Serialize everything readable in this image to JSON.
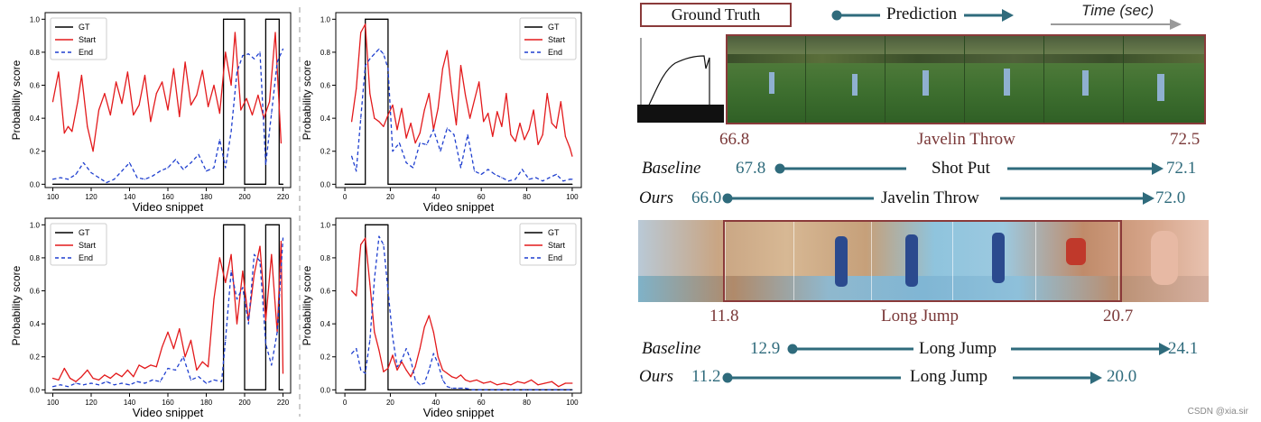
{
  "colors": {
    "gt": "#000000",
    "start": "#e31a1c",
    "end": "#1f3fcf",
    "teal": "#2f6b7c",
    "maroon": "#7a3838",
    "arrow_gray": "#9a9a9a"
  },
  "chart_data": [
    {
      "type": "line",
      "xlabel": "Video snippet",
      "ylabel": "Probability score",
      "xlim": [
        96,
        224
      ],
      "ylim": [
        -0.02,
        1.04
      ],
      "xticks": [
        100,
        120,
        140,
        160,
        180,
        200,
        220
      ],
      "yticks": [
        0.0,
        0.2,
        0.4,
        0.6,
        0.8,
        1.0
      ],
      "legend": "top-left",
      "series": [
        {
          "name": "GT",
          "style": "solid",
          "x": [
            100,
            189,
            189,
            191,
            191,
            200,
            200,
            211,
            211,
            218,
            218,
            220
          ],
          "y": [
            0,
            0,
            1,
            1,
            1,
            1,
            0,
            0,
            1,
            1,
            0,
            0
          ]
        },
        {
          "name": "Start",
          "style": "solid",
          "x": [
            100,
            103,
            106,
            108,
            110,
            113,
            115,
            118,
            121,
            124,
            127,
            130,
            133,
            136,
            139,
            142,
            145,
            148,
            151,
            154,
            157,
            160,
            163,
            166,
            169,
            172,
            175,
            178,
            181,
            184,
            187,
            190,
            193,
            195,
            198,
            201,
            204,
            207,
            210,
            213,
            216,
            219
          ],
          "y": [
            0.5,
            0.68,
            0.31,
            0.35,
            0.32,
            0.5,
            0.66,
            0.35,
            0.2,
            0.45,
            0.55,
            0.42,
            0.62,
            0.49,
            0.68,
            0.42,
            0.48,
            0.66,
            0.38,
            0.55,
            0.62,
            0.45,
            0.7,
            0.41,
            0.74,
            0.48,
            0.54,
            0.69,
            0.47,
            0.6,
            0.43,
            0.8,
            0.6,
            0.92,
            0.45,
            0.52,
            0.42,
            0.54,
            0.4,
            0.5,
            0.92,
            0.25
          ]
        },
        {
          "name": "End",
          "style": "dashed",
          "x": [
            100,
            104,
            108,
            112,
            116,
            120,
            124,
            128,
            132,
            136,
            140,
            144,
            148,
            152,
            156,
            160,
            164,
            168,
            172,
            176,
            180,
            184,
            187,
            190,
            193,
            196,
            199,
            202,
            205,
            208,
            211,
            214,
            217,
            220
          ],
          "y": [
            0.03,
            0.04,
            0.03,
            0.06,
            0.13,
            0.07,
            0.04,
            0.01,
            0.03,
            0.08,
            0.13,
            0.04,
            0.03,
            0.05,
            0.08,
            0.1,
            0.15,
            0.09,
            0.13,
            0.18,
            0.08,
            0.1,
            0.27,
            0.1,
            0.32,
            0.68,
            0.78,
            0.79,
            0.76,
            0.8,
            0.12,
            0.43,
            0.74,
            0.82
          ]
        }
      ]
    },
    {
      "type": "line",
      "xlabel": "Video snippet",
      "ylabel": "Probability score",
      "xlim": [
        -4,
        104
      ],
      "ylim": [
        -0.02,
        1.04
      ],
      "xticks": [
        0,
        20,
        40,
        60,
        80,
        100
      ],
      "yticks": [
        0.0,
        0.2,
        0.4,
        0.6,
        0.8,
        1.0
      ],
      "legend": "top-right",
      "series": [
        {
          "name": "GT",
          "style": "solid",
          "x": [
            0,
            9,
            9,
            19,
            19,
            100
          ],
          "y": [
            0,
            0,
            1,
            1,
            0,
            0
          ]
        },
        {
          "name": "Start",
          "style": "solid",
          "x": [
            3,
            5,
            7,
            9,
            11,
            13,
            15,
            17,
            19,
            21,
            23,
            25,
            27,
            29,
            31,
            33,
            35,
            37,
            39,
            41,
            43,
            45,
            47,
            49,
            51,
            53,
            55,
            57,
            59,
            61,
            63,
            65,
            67,
            69,
            71,
            73,
            75,
            77,
            79,
            81,
            83,
            85,
            87,
            89,
            91,
            93,
            95,
            97,
            99,
            100
          ],
          "y": [
            0.38,
            0.58,
            0.92,
            0.97,
            0.55,
            0.4,
            0.38,
            0.35,
            0.42,
            0.48,
            0.33,
            0.46,
            0.28,
            0.37,
            0.25,
            0.31,
            0.45,
            0.55,
            0.33,
            0.46,
            0.7,
            0.81,
            0.56,
            0.36,
            0.72,
            0.54,
            0.4,
            0.51,
            0.62,
            0.38,
            0.43,
            0.29,
            0.44,
            0.35,
            0.55,
            0.3,
            0.26,
            0.37,
            0.27,
            0.33,
            0.45,
            0.24,
            0.3,
            0.55,
            0.37,
            0.34,
            0.5,
            0.29,
            0.22,
            0.17
          ]
        },
        {
          "name": "End",
          "style": "dashed",
          "x": [
            3,
            5,
            7,
            9,
            11,
            13,
            15,
            17,
            19,
            21,
            24,
            27,
            30,
            33,
            36,
            39,
            42,
            45,
            48,
            51,
            54,
            57,
            60,
            63,
            66,
            69,
            72,
            75,
            78,
            81,
            84,
            87,
            90,
            93,
            96,
            99,
            100
          ],
          "y": [
            0.17,
            0.08,
            0.4,
            0.72,
            0.76,
            0.79,
            0.82,
            0.79,
            0.7,
            0.2,
            0.25,
            0.13,
            0.1,
            0.25,
            0.24,
            0.33,
            0.2,
            0.34,
            0.3,
            0.1,
            0.3,
            0.08,
            0.06,
            0.09,
            0.06,
            0.04,
            0.02,
            0.03,
            0.09,
            0.03,
            0.04,
            0.02,
            0.04,
            0.06,
            0.02,
            0.03,
            0.03
          ]
        }
      ]
    },
    {
      "type": "line",
      "xlabel": "Video snippet",
      "ylabel": "Probability score",
      "xlim": [
        96,
        224
      ],
      "ylim": [
        -0.02,
        1.04
      ],
      "xticks": [
        100,
        120,
        140,
        160,
        180,
        200,
        220
      ],
      "yticks": [
        0.0,
        0.2,
        0.4,
        0.6,
        0.8,
        1.0
      ],
      "legend": "top-left",
      "series": [
        {
          "name": "GT",
          "style": "solid",
          "x": [
            100,
            189,
            189,
            191,
            191,
            200,
            200,
            211,
            211,
            218,
            218,
            220
          ],
          "y": [
            0,
            0,
            1,
            1,
            1,
            1,
            0,
            0,
            1,
            1,
            0,
            0
          ]
        },
        {
          "name": "Start",
          "style": "solid",
          "x": [
            100,
            103,
            106,
            109,
            112,
            115,
            118,
            121,
            124,
            127,
            130,
            133,
            136,
            139,
            142,
            145,
            148,
            151,
            154,
            157,
            160,
            163,
            166,
            169,
            172,
            175,
            178,
            181,
            184,
            187,
            190,
            193,
            196,
            199,
            202,
            205,
            208,
            211,
            214,
            217,
            219,
            220
          ],
          "y": [
            0.07,
            0.06,
            0.13,
            0.07,
            0.05,
            0.08,
            0.12,
            0.07,
            0.06,
            0.09,
            0.07,
            0.1,
            0.08,
            0.12,
            0.08,
            0.15,
            0.13,
            0.15,
            0.14,
            0.26,
            0.35,
            0.25,
            0.37,
            0.2,
            0.3,
            0.12,
            0.17,
            0.14,
            0.55,
            0.8,
            0.65,
            0.82,
            0.4,
            0.72,
            0.42,
            0.7,
            0.87,
            0.42,
            0.82,
            0.35,
            0.9,
            0.1
          ]
        },
        {
          "name": "End",
          "style": "dashed",
          "x": [
            100,
            104,
            108,
            112,
            116,
            120,
            124,
            128,
            132,
            136,
            140,
            144,
            148,
            152,
            156,
            160,
            164,
            168,
            172,
            176,
            180,
            184,
            188,
            190,
            193,
            196,
            199,
            202,
            205,
            208,
            211,
            214,
            217,
            220
          ],
          "y": [
            0.02,
            0.03,
            0.02,
            0.04,
            0.03,
            0.04,
            0.03,
            0.05,
            0.03,
            0.04,
            0.03,
            0.05,
            0.04,
            0.06,
            0.05,
            0.13,
            0.12,
            0.2,
            0.06,
            0.08,
            0.04,
            0.06,
            0.05,
            0.3,
            0.72,
            0.55,
            0.62,
            0.4,
            0.82,
            0.78,
            0.28,
            0.15,
            0.35,
            0.92
          ]
        }
      ]
    },
    {
      "type": "line",
      "xlabel": "Video snippet",
      "ylabel": "Probability score",
      "xlim": [
        -4,
        104
      ],
      "ylim": [
        -0.02,
        1.04
      ],
      "xticks": [
        0,
        20,
        40,
        60,
        80,
        100
      ],
      "yticks": [
        0.0,
        0.2,
        0.4,
        0.6,
        0.8,
        1.0
      ],
      "legend": "top-right",
      "series": [
        {
          "name": "GT",
          "style": "solid",
          "x": [
            0,
            9,
            9,
            19,
            19,
            100
          ],
          "y": [
            0,
            0,
            1,
            1,
            0,
            0
          ]
        },
        {
          "name": "Start",
          "style": "solid",
          "x": [
            3,
            5,
            7,
            9,
            11,
            13,
            15,
            17,
            19,
            21,
            23,
            25,
            27,
            29,
            31,
            33,
            35,
            37,
            39,
            41,
            43,
            45,
            47,
            49,
            51,
            53,
            55,
            58,
            61,
            64,
            67,
            70,
            73,
            76,
            79,
            82,
            85,
            88,
            91,
            94,
            97,
            100
          ],
          "y": [
            0.6,
            0.57,
            0.88,
            0.92,
            0.64,
            0.35,
            0.24,
            0.11,
            0.13,
            0.21,
            0.12,
            0.17,
            0.12,
            0.08,
            0.14,
            0.25,
            0.38,
            0.45,
            0.35,
            0.2,
            0.12,
            0.1,
            0.08,
            0.07,
            0.09,
            0.06,
            0.05,
            0.06,
            0.04,
            0.05,
            0.03,
            0.04,
            0.03,
            0.05,
            0.04,
            0.06,
            0.03,
            0.04,
            0.05,
            0.02,
            0.04,
            0.04
          ]
        },
        {
          "name": "End",
          "style": "dashed",
          "x": [
            3,
            5,
            7,
            9,
            11,
            13,
            15,
            17,
            19,
            21,
            23,
            25,
            27,
            29,
            31,
            33,
            35,
            37,
            39,
            41,
            43,
            45,
            47,
            50,
            53,
            56,
            60,
            65,
            70,
            75,
            80,
            85,
            90,
            95,
            100
          ],
          "y": [
            0.22,
            0.25,
            0.12,
            0.1,
            0.3,
            0.67,
            0.93,
            0.88,
            0.6,
            0.32,
            0.14,
            0.18,
            0.25,
            0.18,
            0.06,
            0.03,
            0.04,
            0.12,
            0.22,
            0.16,
            0.06,
            0.02,
            0.01,
            0.01,
            0.01,
            0.0,
            0.0,
            0.0,
            0.0,
            0.0,
            0.0,
            0.0,
            0.0,
            0.0,
            0.0
          ]
        }
      ]
    }
  ],
  "diagram": {
    "ground_truth_label": "Ground Truth",
    "prediction_label": "Prediction",
    "time_label": "Time (sec)",
    "javelin": {
      "gt_start": "66.8",
      "gt_label": "Javelin Throw",
      "gt_end": "72.5",
      "baseline_label": "Baseline",
      "baseline_start": "67.8",
      "baseline_class": "Shot Put",
      "baseline_end": "72.1",
      "ours_label": "Ours",
      "ours_start": "66.0",
      "ours_class": "Javelin Throw",
      "ours_end": "72.0"
    },
    "longjump": {
      "gt_start": "11.8",
      "gt_label": "Long Jump",
      "gt_end": "20.7",
      "baseline_label": "Baseline",
      "baseline_start": "12.9",
      "baseline_class": "Long Jump",
      "baseline_end": "24.1",
      "ours_label": "Ours",
      "ours_start": "11.2",
      "ours_class": "Long Jump",
      "ours_end": "20.0"
    }
  },
  "watermark": "CSDN @xia.sir"
}
